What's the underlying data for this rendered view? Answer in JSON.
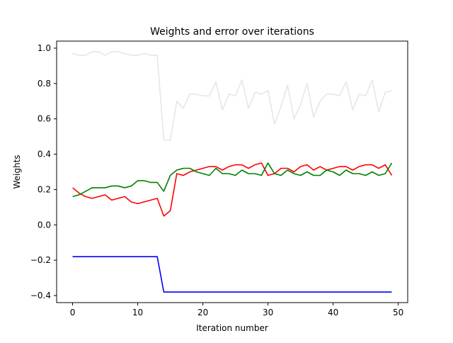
{
  "chart_data": {
    "type": "line",
    "title": "Weights and error over iterations",
    "xlabel": "Iteration number",
    "ylabel": "Weights",
    "xlim": [
      -2.45,
      51.45
    ],
    "ylim": [
      -0.44,
      1.04
    ],
    "xticks": [
      0,
      10,
      20,
      30,
      40,
      50
    ],
    "xtick_labels": [
      "0",
      "10",
      "20",
      "30",
      "40",
      "50"
    ],
    "yticks": [
      -0.4,
      -0.2,
      0.0,
      0.2,
      0.4,
      0.6,
      0.8,
      1.0
    ],
    "ytick_labels": [
      "−0.4",
      "−0.2",
      "0.0",
      "0.2",
      "0.4",
      "0.6",
      "0.8",
      "1.0"
    ],
    "grid": false,
    "legend": "none",
    "x": [
      0,
      1,
      2,
      3,
      4,
      5,
      6,
      7,
      8,
      9,
      10,
      11,
      12,
      13,
      14,
      15,
      16,
      17,
      18,
      19,
      20,
      21,
      22,
      23,
      24,
      25,
      26,
      27,
      28,
      29,
      30,
      31,
      32,
      33,
      34,
      35,
      36,
      37,
      38,
      39,
      40,
      41,
      42,
      43,
      44,
      45,
      46,
      47,
      48,
      49
    ],
    "series": [
      {
        "color": "#e6e6e6",
        "values": [
          0.97,
          0.96,
          0.96,
          0.98,
          0.98,
          0.96,
          0.98,
          0.98,
          0.97,
          0.96,
          0.96,
          0.97,
          0.96,
          0.96,
          0.48,
          0.48,
          0.7,
          0.66,
          0.74,
          0.74,
          0.73,
          0.73,
          0.81,
          0.65,
          0.74,
          0.73,
          0.82,
          0.66,
          0.75,
          0.74,
          0.76,
          0.57,
          0.67,
          0.79,
          0.6,
          0.68,
          0.8,
          0.61,
          0.7,
          0.74,
          0.74,
          0.73,
          0.81,
          0.65,
          0.74,
          0.73,
          0.82,
          0.64,
          0.75,
          0.76
        ]
      },
      {
        "color": "#ff0000",
        "values": [
          0.21,
          0.18,
          0.16,
          0.15,
          0.16,
          0.17,
          0.14,
          0.15,
          0.16,
          0.13,
          0.12,
          0.13,
          0.14,
          0.15,
          0.05,
          0.08,
          0.29,
          0.28,
          0.3,
          0.31,
          0.32,
          0.33,
          0.33,
          0.31,
          0.33,
          0.34,
          0.34,
          0.32,
          0.34,
          0.35,
          0.28,
          0.29,
          0.32,
          0.32,
          0.3,
          0.33,
          0.34,
          0.31,
          0.33,
          0.31,
          0.32,
          0.33,
          0.33,
          0.31,
          0.33,
          0.34,
          0.34,
          0.32,
          0.34,
          0.28
        ]
      },
      {
        "color": "#008000",
        "values": [
          0.16,
          0.17,
          0.19,
          0.21,
          0.21,
          0.21,
          0.22,
          0.22,
          0.21,
          0.22,
          0.25,
          0.25,
          0.24,
          0.24,
          0.19,
          0.28,
          0.31,
          0.32,
          0.32,
          0.3,
          0.29,
          0.28,
          0.32,
          0.29,
          0.29,
          0.28,
          0.31,
          0.29,
          0.29,
          0.28,
          0.35,
          0.29,
          0.28,
          0.31,
          0.29,
          0.28,
          0.3,
          0.28,
          0.28,
          0.31,
          0.3,
          0.28,
          0.31,
          0.29,
          0.29,
          0.28,
          0.3,
          0.28,
          0.29,
          0.35
        ]
      },
      {
        "color": "#0000ff",
        "values": [
          -0.18,
          -0.18,
          -0.18,
          -0.18,
          -0.18,
          -0.18,
          -0.18,
          -0.18,
          -0.18,
          -0.18,
          -0.18,
          -0.18,
          -0.18,
          -0.18,
          -0.38,
          -0.38,
          -0.38,
          -0.38,
          -0.38,
          -0.38,
          -0.38,
          -0.38,
          -0.38,
          -0.38,
          -0.38,
          -0.38,
          -0.38,
          -0.38,
          -0.38,
          -0.38,
          -0.38,
          -0.38,
          -0.38,
          -0.38,
          -0.38,
          -0.38,
          -0.38,
          -0.38,
          -0.38,
          -0.38,
          -0.38,
          -0.38,
          -0.38,
          -0.38,
          -0.38,
          -0.38,
          -0.38,
          -0.38,
          -0.38,
          -0.38
        ]
      }
    ]
  }
}
